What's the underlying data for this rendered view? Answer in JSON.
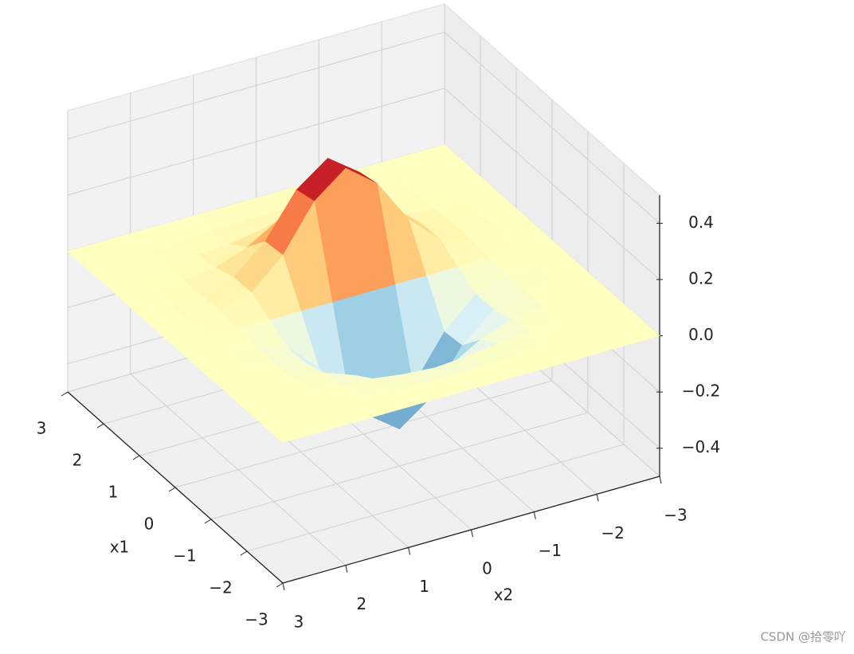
{
  "chart_data": {
    "type": "surface",
    "x1": [
      -3,
      -2.5,
      -2,
      -1.5,
      -1,
      -0.5,
      0,
      0.5,
      1,
      1.5,
      2,
      2.5,
      3
    ],
    "x2": [
      -3,
      -2.5,
      -2,
      -1.5,
      -1,
      -0.5,
      0,
      0.5,
      1,
      1.5,
      2,
      2.5,
      3
    ],
    "z": [
      [
        0,
        0,
        0,
        0,
        0,
        0,
        0,
        0,
        0,
        0,
        0,
        0,
        0
      ],
      [
        0,
        0,
        0,
        -0.001,
        -0.002,
        -0.004,
        -0.005,
        -0.004,
        -0.002,
        -0.001,
        0,
        0,
        0
      ],
      [
        0,
        0,
        -0.001,
        -0.004,
        -0.013,
        -0.029,
        -0.037,
        -0.029,
        -0.013,
        -0.004,
        -0.001,
        0,
        0
      ],
      [
        0,
        0,
        -0.003,
        -0.017,
        -0.058,
        -0.123,
        -0.158,
        -0.123,
        -0.058,
        -0.017,
        -0.003,
        0,
        0
      ],
      [
        0,
        -0.001,
        -0.007,
        -0.039,
        -0.135,
        -0.287,
        -0.368,
        -0.287,
        -0.135,
        -0.039,
        -0.007,
        -0.001,
        0
      ],
      [
        0,
        -0.001,
        -0.007,
        -0.041,
        -0.143,
        -0.303,
        -0.389,
        -0.303,
        -0.143,
        -0.041,
        -0.007,
        -0.001,
        0
      ],
      [
        0,
        0,
        0,
        0,
        0,
        0,
        0,
        0,
        0,
        0,
        0,
        0,
        0
      ],
      [
        0,
        0.001,
        0.007,
        0.041,
        0.143,
        0.303,
        0.389,
        0.303,
        0.143,
        0.041,
        0.007,
        0.001,
        0
      ],
      [
        0,
        0.001,
        0.007,
        0.039,
        0.135,
        0.287,
        0.368,
        0.287,
        0.135,
        0.039,
        0.007,
        0.001,
        0
      ],
      [
        0,
        0,
        0.003,
        0.017,
        0.058,
        0.123,
        0.158,
        0.123,
        0.058,
        0.017,
        0.003,
        0,
        0
      ],
      [
        0,
        0,
        0.001,
        0.004,
        0.013,
        0.029,
        0.037,
        0.029,
        0.013,
        0.004,
        0.001,
        0,
        0
      ],
      [
        0,
        0,
        0,
        0.001,
        0.002,
        0.004,
        0.005,
        0.004,
        0.002,
        0.001,
        0,
        0,
        0
      ],
      [
        0,
        0,
        0,
        0,
        0,
        0,
        0,
        0,
        0,
        0,
        0,
        0,
        0
      ]
    ],
    "colormap": [
      "#313695",
      "#4575b4",
      "#74add1",
      "#abd9e9",
      "#e0f3f8",
      "#ffffbf",
      "#fee090",
      "#fdae61",
      "#f46d43",
      "#d73027",
      "#a50026"
    ],
    "x1lim": [
      -3,
      3
    ],
    "x1ticks": [
      {
        "value": -3,
        "label": "−3"
      },
      {
        "value": -2,
        "label": "−2"
      },
      {
        "value": -1,
        "label": "−1"
      },
      0,
      1,
      2,
      3
    ],
    "x2lim": [
      -3,
      3
    ],
    "x2ticks": [
      {
        "value": -3,
        "label": "−3"
      },
      {
        "value": -2,
        "label": "−2"
      },
      {
        "value": -1,
        "label": "−1"
      },
      0,
      1,
      2,
      3
    ],
    "zlim": [
      -0.5,
      0.5
    ],
    "zticks": [
      {
        "value": -0.4,
        "label": "−0.4"
      },
      {
        "value": -0.2,
        "label": "−0.2"
      },
      {
        "value": 0,
        "label": "0.0"
      },
      0.2,
      0.4
    ],
    "x1label": "x1",
    "x2label": "x2",
    "grid": true,
    "watermark": "CSDN @拾零吖"
  }
}
